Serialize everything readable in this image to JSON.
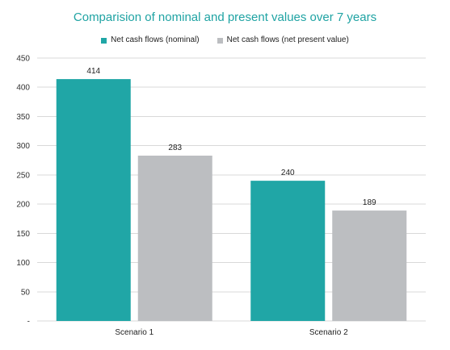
{
  "colors": {
    "title": "#1fa3a3",
    "nominal": "#20a6a6",
    "npv": "#bcbec1",
    "grid": "#d9d9d9"
  },
  "chart_data": {
    "type": "bar",
    "title": "Comparision of nominal and present values over 7 years",
    "categories": [
      "Scenario 1",
      "Scenario 2"
    ],
    "series": [
      {
        "name": "Net cash flows (nominal)",
        "values": [
          414,
          240
        ],
        "data_labels": [
          "414",
          "240"
        ]
      },
      {
        "name": "Net cash flows (net present value)",
        "values": [
          283,
          189
        ],
        "data_labels": [
          "283",
          "189"
        ]
      }
    ],
    "xlabel": "",
    "ylabel": "",
    "ylim": [
      0,
      450
    ],
    "y_ticks": [
      0,
      50,
      100,
      150,
      200,
      250,
      300,
      350,
      400,
      450
    ],
    "y_tick_labels": [
      "-",
      "50",
      "100",
      "150",
      "200",
      "250",
      "300",
      "350",
      "400",
      "450"
    ],
    "grid": true,
    "legend_position": "top"
  }
}
